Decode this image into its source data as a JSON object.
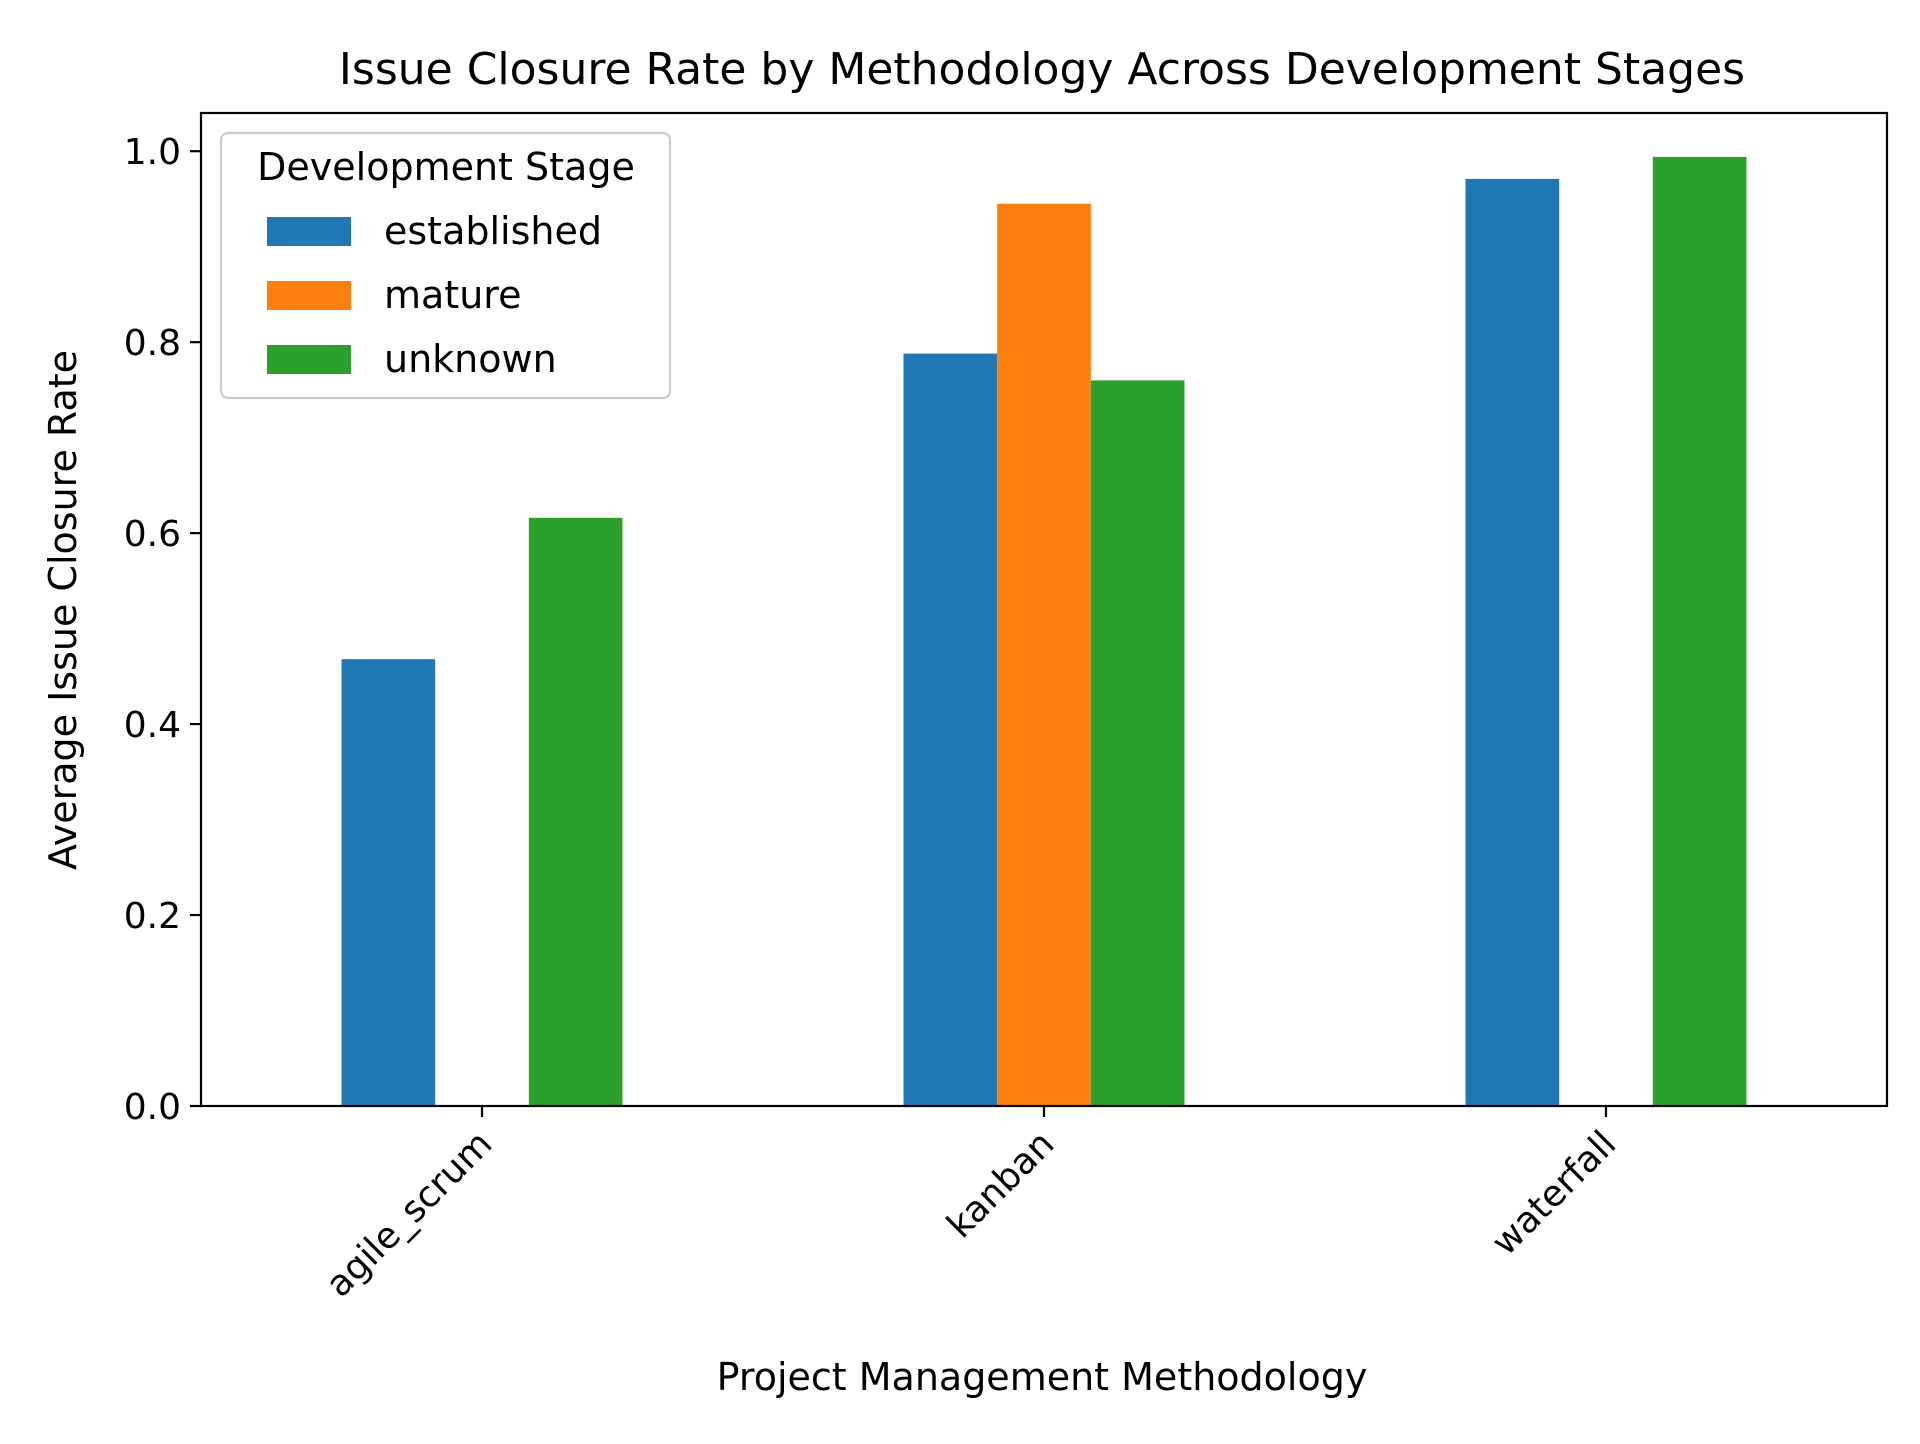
{
  "chart_data": {
    "type": "bar",
    "title": "Issue Closure Rate by Methodology Across Development Stages",
    "xlabel": "Project Management Methodology",
    "ylabel": "Average Issue Closure Rate",
    "categories": [
      "agile_scrum",
      "kanban",
      "waterfall"
    ],
    "ylim": [
      0,
      1.04
    ],
    "yticks": [
      0.0,
      0.2,
      0.4,
      0.6,
      0.8,
      1.0
    ],
    "ytick_labels": [
      "0.0",
      "0.2",
      "0.4",
      "0.6",
      "0.8",
      "1.0"
    ],
    "grid": false,
    "legend": {
      "title": "Development Stage",
      "placement": "top-left"
    },
    "series": [
      {
        "name": "established",
        "color": "#1f77b4",
        "values": [
          0.468,
          0.788,
          0.971
        ]
      },
      {
        "name": "mature",
        "color": "#ff7f0e",
        "values": [
          null,
          0.945,
          null
        ]
      },
      {
        "name": "unknown",
        "color": "#2ca02c",
        "values": [
          0.616,
          0.76,
          0.994
        ]
      }
    ]
  }
}
